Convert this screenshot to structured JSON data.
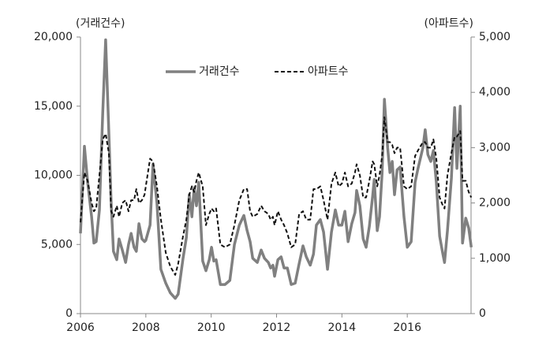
{
  "chart_data": {
    "type": "line",
    "y_label": "(거래건수)",
    "y2_label": "(아파트수)",
    "x": [
      2006.0,
      2006.12,
      2006.22,
      2006.34,
      2006.41,
      2006.48,
      2006.58,
      2006.68,
      2006.77,
      2006.87,
      2006.94,
      2007.01,
      2007.11,
      2007.18,
      2007.28,
      2007.38,
      2007.47,
      2007.55,
      2007.64,
      2007.71,
      2007.79,
      2007.88,
      2007.96,
      2008.0,
      2008.13,
      2008.22,
      2008.34,
      2008.46,
      2008.61,
      2008.75,
      2008.9,
      2008.99,
      2009.14,
      2009.24,
      2009.33,
      2009.41,
      2009.48,
      2009.55,
      2009.62,
      2009.74,
      2009.84,
      2009.94,
      2010.01,
      2010.08,
      2010.15,
      2010.28,
      2010.42,
      2010.57,
      2010.71,
      2010.86,
      2011.0,
      2011.1,
      2011.19,
      2011.27,
      2011.41,
      2011.53,
      2011.63,
      2011.75,
      2011.82,
      2011.89,
      2011.94,
      2012.04,
      2012.14,
      2012.23,
      2012.33,
      2012.45,
      2012.57,
      2012.69,
      2012.81,
      2012.91,
      2013.03,
      2013.13,
      2013.22,
      2013.34,
      2013.44,
      2013.56,
      2013.68,
      2013.8,
      2013.9,
      2014.0,
      2014.09,
      2014.19,
      2014.3,
      2014.4,
      2014.45,
      2014.55,
      2014.65,
      2014.74,
      2014.84,
      2014.94,
      2014.99,
      2015.08,
      2015.15,
      2015.23,
      2015.3,
      2015.4,
      2015.47,
      2015.54,
      2015.61,
      2015.69,
      2015.78,
      2015.9,
      2016.0,
      2016.12,
      2016.24,
      2016.33,
      2016.48,
      2016.55,
      2016.63,
      2016.72,
      2016.8,
      2016.89,
      2016.99,
      2017.09,
      2017.14,
      2017.23,
      2017.35,
      2017.45,
      2017.52,
      2017.62,
      2017.69,
      2017.79,
      2017.88,
      2017.96
    ],
    "series": [
      {
        "name": "거래건수",
        "color": "#808080",
        "dash": false,
        "values": [
          5800,
          12100,
          9500,
          7000,
          5100,
          5200,
          7500,
          14500,
          19800,
          13000,
          8000,
          4500,
          3900,
          5400,
          4600,
          3700,
          5000,
          5800,
          4800,
          4500,
          6500,
          5400,
          5200,
          5300,
          6400,
          10800,
          8000,
          3200,
          2200,
          1500,
          1100,
          1400,
          4000,
          5500,
          8600,
          7000,
          9100,
          7800,
          9500,
          3800,
          3100,
          3900,
          4800,
          3800,
          3900,
          2100,
          2100,
          2400,
          5000,
          6400,
          7100,
          6000,
          5200,
          4000,
          3700,
          4600,
          4000,
          3700,
          3300,
          3500,
          2700,
          3900,
          4100,
          3300,
          3300,
          2100,
          2200,
          3600,
          4900,
          4100,
          3500,
          4300,
          6400,
          6800,
          5900,
          3200,
          5900,
          7500,
          6400,
          6400,
          7400,
          5200,
          6500,
          7300,
          8900,
          7800,
          5400,
          4800,
          6300,
          8500,
          9700,
          6000,
          7000,
          10200,
          15500,
          12000,
          10200,
          11000,
          8600,
          10400,
          10600,
          7000,
          4800,
          5200,
          9500,
          10500,
          12000,
          13300,
          11500,
          11000,
          11800,
          9500,
          5600,
          4300,
          3700,
          6000,
          9800,
          14900,
          10500,
          15000,
          5100,
          6900,
          6200,
          4800
        ]
      },
      {
        "name": "아파트수",
        "color": "#111111",
        "dash": true,
        "axis": "y2",
        "values": [
          1650,
          2550,
          2400,
          2000,
          1850,
          1900,
          2500,
          3150,
          3250,
          2900,
          1850,
          1750,
          1950,
          1750,
          2000,
          2050,
          1850,
          2050,
          2050,
          2250,
          2000,
          2050,
          2150,
          2300,
          2800,
          2750,
          2300,
          1700,
          1100,
          850,
          700,
          900,
          1400,
          1700,
          2150,
          2300,
          2200,
          2400,
          2550,
          2300,
          1600,
          1800,
          1900,
          1850,
          1900,
          1250,
          1200,
          1250,
          1600,
          2050,
          2250,
          2250,
          1850,
          1750,
          1800,
          1950,
          1850,
          1800,
          1700,
          1750,
          1600,
          1850,
          1700,
          1600,
          1450,
          1200,
          1250,
          1800,
          1850,
          1700,
          1700,
          2250,
          2250,
          2300,
          2050,
          1700,
          2350,
          2550,
          2300,
          2350,
          2550,
          2300,
          2350,
          2550,
          2700,
          2500,
          2100,
          2100,
          2400,
          2750,
          2700,
          2300,
          2500,
          2850,
          3550,
          3100,
          3100,
          3050,
          2900,
          3000,
          3000,
          2300,
          2250,
          2300,
          2850,
          2950,
          3100,
          3100,
          3000,
          3000,
          3150,
          2800,
          2100,
          1950,
          1900,
          2500,
          2900,
          3200,
          3200,
          3300,
          2400,
          2400,
          2200,
          2100
        ]
      }
    ],
    "xlim": [
      2006,
      2018
    ],
    "xticks": [
      2006,
      2008,
      2010,
      2012,
      2014,
      2016
    ],
    "ylim": [
      0,
      20000
    ],
    "yticks": [
      0,
      {
        "value": 5000,
        "label": "5,000"
      },
      {
        "value": 10000,
        "label": "10,000"
      },
      {
        "value": 15000,
        "label": "15,000"
      },
      {
        "value": 20000,
        "label": "20,000"
      }
    ],
    "y2lim": [
      0,
      5000
    ],
    "y2ticks": [
      0,
      {
        "value": 1000,
        "label": "1,000"
      },
      {
        "value": 2000,
        "label": "2,000"
      },
      {
        "value": 3000,
        "label": "3,000"
      },
      {
        "value": 4000,
        "label": "4,000"
      },
      {
        "value": 5000,
        "label": "5,000"
      }
    ],
    "legend": "top"
  }
}
